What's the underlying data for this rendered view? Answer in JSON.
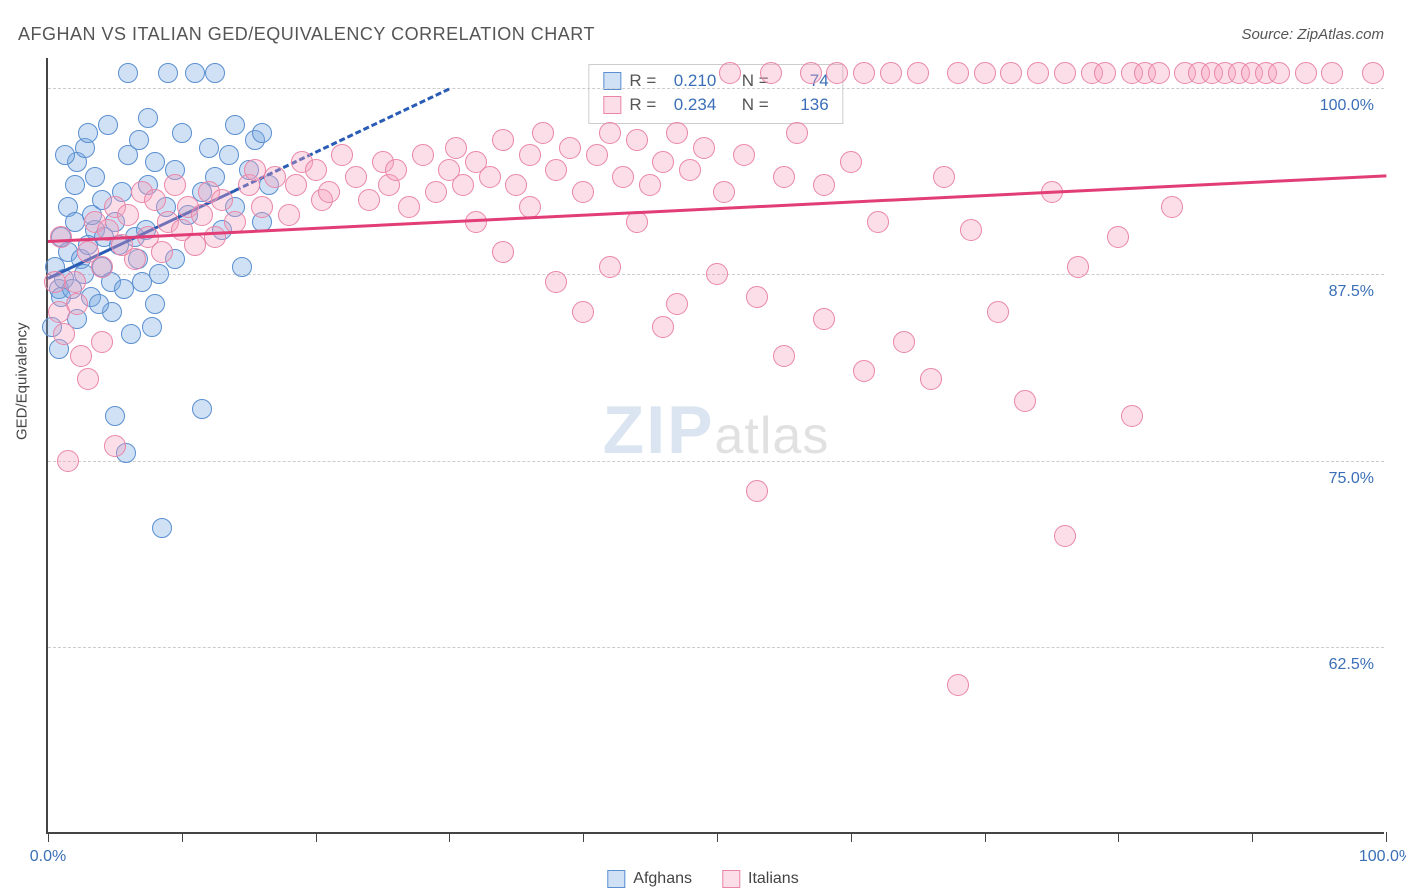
{
  "title": "AFGHAN VS ITALIAN GED/EQUIVALENCY CORRELATION CHART",
  "source": "Source: ZipAtlas.com",
  "ylabel": "GED/Equivalency",
  "watermark": {
    "zip": "ZIP",
    "atlas": "atlas"
  },
  "chart": {
    "type": "scatter",
    "background_color": "#ffffff",
    "axis_color": "#444444",
    "grid_color": "#cccccc",
    "tick_label_color": "#3a6fb7",
    "title_fontsize": 18,
    "label_fontsize": 15,
    "tick_fontsize": 16,
    "xlim": [
      0,
      100
    ],
    "ylim": [
      50,
      102
    ],
    "xticks": [
      0,
      10,
      20,
      30,
      40,
      50,
      60,
      70,
      80,
      90,
      100
    ],
    "xtick_labels": {
      "0": "0.0%",
      "100": "100.0%"
    },
    "ygrid": [
      62.5,
      75.0,
      87.5,
      100.0
    ],
    "ytick_labels": {
      "62.5": "62.5%",
      "75.0": "75.0%",
      "87.5": "87.5%",
      "100.0": "100.0%"
    },
    "series": [
      {
        "name": "Afghans",
        "marker_fill": "rgba(120,170,225,0.35)",
        "marker_stroke": "#5a8fd0",
        "marker_radius": 10,
        "trend_color": "#2a5bb5",
        "trend_width": 3,
        "trend": {
          "x1": 0,
          "y1": 87.3,
          "x2": 14,
          "y2": 93.2
        },
        "trend_ext": {
          "x1": 14,
          "y1": 93.2,
          "x2": 30,
          "y2": 100.0
        },
        "R": "0.210",
        "N": "74",
        "points": [
          [
            0.5,
            88.0
          ],
          [
            0.8,
            86.5
          ],
          [
            1.0,
            90.0
          ],
          [
            1.2,
            87.2
          ],
          [
            1.5,
            89.0
          ],
          [
            1.5,
            92.0
          ],
          [
            2.0,
            91.0
          ],
          [
            2.0,
            93.5
          ],
          [
            2.2,
            95.0
          ],
          [
            2.5,
            88.5
          ],
          [
            2.8,
            96.0
          ],
          [
            3.0,
            97.0
          ],
          [
            3.2,
            86.0
          ],
          [
            3.5,
            94.0
          ],
          [
            3.5,
            90.5
          ],
          [
            4.0,
            92.5
          ],
          [
            4.0,
            88.0
          ],
          [
            4.5,
            97.5
          ],
          [
            4.8,
            85.0
          ],
          [
            5.0,
            91.0
          ],
          [
            5.0,
            78.0
          ],
          [
            5.5,
            93.0
          ],
          [
            5.8,
            75.5
          ],
          [
            6.0,
            95.5
          ],
          [
            6.0,
            101.0
          ],
          [
            6.5,
            90.0
          ],
          [
            6.8,
            96.5
          ],
          [
            7.0,
            87.0
          ],
          [
            7.5,
            98.0
          ],
          [
            7.5,
            93.5
          ],
          [
            8.0,
            85.5
          ],
          [
            8.0,
            95.0
          ],
          [
            8.5,
            70.5
          ],
          [
            8.8,
            92.0
          ],
          [
            9.0,
            101.0
          ],
          [
            9.5,
            94.5
          ],
          [
            9.5,
            88.5
          ],
          [
            10.0,
            97.0
          ],
          [
            10.5,
            91.5
          ],
          [
            11.0,
            101.0
          ],
          [
            11.5,
            93.0
          ],
          [
            11.5,
            78.5
          ],
          [
            12.0,
            96.0
          ],
          [
            12.5,
            94.0
          ],
          [
            12.5,
            101.0
          ],
          [
            13.0,
            90.5
          ],
          [
            13.5,
            95.5
          ],
          [
            14.0,
            97.5
          ],
          [
            14.0,
            92.0
          ],
          [
            14.5,
            88.0
          ],
          [
            15.0,
            94.5
          ],
          [
            15.5,
            96.5
          ],
          [
            16.0,
            91.0
          ],
          [
            16.0,
            97.0
          ],
          [
            16.5,
            93.5
          ],
          [
            0.3,
            84.0
          ],
          [
            0.8,
            82.5
          ],
          [
            1.0,
            86.0
          ],
          [
            1.3,
            95.5
          ],
          [
            1.8,
            86.5
          ],
          [
            2.2,
            84.5
          ],
          [
            2.7,
            87.5
          ],
          [
            3.0,
            89.5
          ],
          [
            3.3,
            91.5
          ],
          [
            3.8,
            85.5
          ],
          [
            4.2,
            90.0
          ],
          [
            4.7,
            87.0
          ],
          [
            5.3,
            89.5
          ],
          [
            5.7,
            86.5
          ],
          [
            6.2,
            83.5
          ],
          [
            6.7,
            88.5
          ],
          [
            7.3,
            90.5
          ],
          [
            7.8,
            84.0
          ],
          [
            8.3,
            87.5
          ]
        ]
      },
      {
        "name": "Italians",
        "marker_fill": "rgba(245,160,190,0.35)",
        "marker_stroke": "#e985a8",
        "marker_radius": 11,
        "trend_color": "#e23d77",
        "trend_width": 3,
        "trend": {
          "x1": 0,
          "y1": 89.8,
          "x2": 100,
          "y2": 94.2
        },
        "R": "0.234",
        "N": "136",
        "points": [
          [
            1.0,
            90.0
          ],
          [
            2.0,
            87.0
          ],
          [
            2.5,
            82.0
          ],
          [
            3.0,
            89.0
          ],
          [
            3.5,
            91.0
          ],
          [
            4.0,
            88.0
          ],
          [
            4.5,
            90.5
          ],
          [
            5.0,
            92.0
          ],
          [
            5.0,
            76.0
          ],
          [
            5.5,
            89.5
          ],
          [
            6.0,
            91.5
          ],
          [
            6.5,
            88.5
          ],
          [
            7.0,
            93.0
          ],
          [
            7.5,
            90.0
          ],
          [
            8.0,
            92.5
          ],
          [
            8.5,
            89.0
          ],
          [
            9.0,
            91.0
          ],
          [
            9.5,
            93.5
          ],
          [
            10.0,
            90.5
          ],
          [
            10.5,
            92.0
          ],
          [
            11.0,
            89.5
          ],
          [
            11.5,
            91.5
          ],
          [
            12.0,
            93.0
          ],
          [
            12.5,
            90.0
          ],
          [
            13.0,
            92.5
          ],
          [
            14.0,
            91.0
          ],
          [
            15.0,
            93.5
          ],
          [
            15.5,
            94.5
          ],
          [
            16.0,
            92.0
          ],
          [
            17.0,
            94.0
          ],
          [
            18.0,
            91.5
          ],
          [
            18.5,
            93.5
          ],
          [
            19.0,
            95.0
          ],
          [
            20.0,
            94.5
          ],
          [
            20.5,
            92.5
          ],
          [
            21.0,
            93.0
          ],
          [
            22.0,
            95.5
          ],
          [
            23.0,
            94.0
          ],
          [
            24.0,
            92.5
          ],
          [
            25.0,
            95.0
          ],
          [
            25.5,
            93.5
          ],
          [
            26.0,
            94.5
          ],
          [
            27.0,
            92.0
          ],
          [
            28.0,
            95.5
          ],
          [
            29.0,
            93.0
          ],
          [
            30.0,
            94.5
          ],
          [
            30.5,
            96.0
          ],
          [
            31.0,
            93.5
          ],
          [
            32.0,
            95.0
          ],
          [
            33.0,
            94.0
          ],
          [
            34.0,
            96.5
          ],
          [
            35.0,
            93.5
          ],
          [
            36.0,
            95.5
          ],
          [
            37.0,
            97.0
          ],
          [
            38.0,
            94.5
          ],
          [
            38.0,
            87.0
          ],
          [
            39.0,
            96.0
          ],
          [
            40.0,
            93.0
          ],
          [
            40.0,
            85.0
          ],
          [
            41.0,
            95.5
          ],
          [
            42.0,
            97.0
          ],
          [
            42.0,
            88.0
          ],
          [
            43.0,
            94.0
          ],
          [
            44.0,
            96.5
          ],
          [
            45.0,
            93.5
          ],
          [
            46.0,
            95.0
          ],
          [
            46.0,
            84.0
          ],
          [
            47.0,
            97.0
          ],
          [
            47.0,
            85.5
          ],
          [
            48.0,
            94.5
          ],
          [
            49.0,
            96.0
          ],
          [
            50.0,
            87.5
          ],
          [
            50.5,
            93.0
          ],
          [
            51.0,
            101.0
          ],
          [
            52.0,
            95.5
          ],
          [
            53.0,
            86.0
          ],
          [
            53.0,
            73.0
          ],
          [
            54.0,
            101.0
          ],
          [
            55.0,
            94.0
          ],
          [
            55.0,
            82.0
          ],
          [
            56.0,
            97.0
          ],
          [
            57.0,
            101.0
          ],
          [
            58.0,
            84.5
          ],
          [
            58.0,
            93.5
          ],
          [
            59.0,
            101.0
          ],
          [
            60.0,
            95.0
          ],
          [
            61.0,
            101.0
          ],
          [
            61.0,
            81.0
          ],
          [
            62.0,
            91.0
          ],
          [
            63.0,
            101.0
          ],
          [
            64.0,
            83.0
          ],
          [
            65.0,
            101.0
          ],
          [
            66.0,
            80.5
          ],
          [
            67.0,
            94.0
          ],
          [
            68.0,
            101.0
          ],
          [
            68.0,
            60.0
          ],
          [
            69.0,
            90.5
          ],
          [
            70.0,
            101.0
          ],
          [
            71.0,
            85.0
          ],
          [
            72.0,
            101.0
          ],
          [
            73.0,
            79.0
          ],
          [
            74.0,
            101.0
          ],
          [
            75.0,
            93.0
          ],
          [
            76.0,
            101.0
          ],
          [
            76.0,
            70.0
          ],
          [
            77.0,
            88.0
          ],
          [
            78.0,
            101.0
          ],
          [
            79.0,
            101.0
          ],
          [
            80.0,
            90.0
          ],
          [
            81.0,
            101.0
          ],
          [
            81.0,
            78.0
          ],
          [
            82.0,
            101.0
          ],
          [
            83.0,
            101.0
          ],
          [
            84.0,
            92.0
          ],
          [
            85.0,
            101.0
          ],
          [
            86.0,
            101.0
          ],
          [
            87.0,
            101.0
          ],
          [
            88.0,
            101.0
          ],
          [
            89.0,
            101.0
          ],
          [
            90.0,
            101.0
          ],
          [
            91.0,
            101.0
          ],
          [
            92.0,
            101.0
          ],
          [
            94.0,
            101.0
          ],
          [
            96.0,
            101.0
          ],
          [
            99.0,
            101.0
          ],
          [
            3.0,
            80.5
          ],
          [
            4.0,
            83.0
          ],
          [
            1.5,
            75.0
          ],
          [
            0.5,
            87.0
          ],
          [
            0.8,
            85.0
          ],
          [
            1.2,
            83.5
          ],
          [
            2.2,
            85.5
          ],
          [
            32.0,
            91.0
          ],
          [
            34.0,
            89.0
          ],
          [
            36.0,
            92.0
          ],
          [
            44.0,
            91.0
          ]
        ]
      }
    ]
  },
  "stats_box": {
    "r_label": "R =",
    "n_label": "N ="
  },
  "bottom_legend": {
    "items": [
      "Afghans",
      "Italians"
    ]
  }
}
